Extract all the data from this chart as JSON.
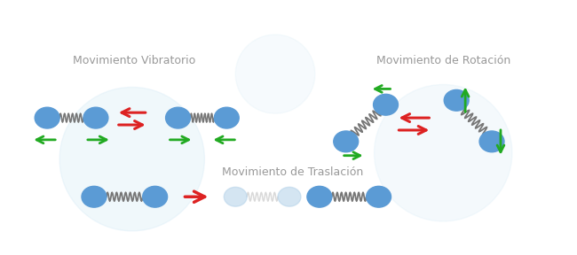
{
  "label_traslacion": "Movimiento de Traslación",
  "label_vibratorio": "Movimiento Vibratorio",
  "label_rotacion": "Movimiento de Rotación",
  "ball_color": "#5B9BD5",
  "ball_color_light": "#B8D4EA",
  "spring_color": "#777777",
  "spring_color_light": "#BBBBBB",
  "arrow_red": "#DD2222",
  "arrow_green": "#22AA22",
  "bg_color": "#FFFFFF",
  "label_fontsize": 9,
  "label_color": "#999999",
  "wm_color": "#D0E8F5"
}
